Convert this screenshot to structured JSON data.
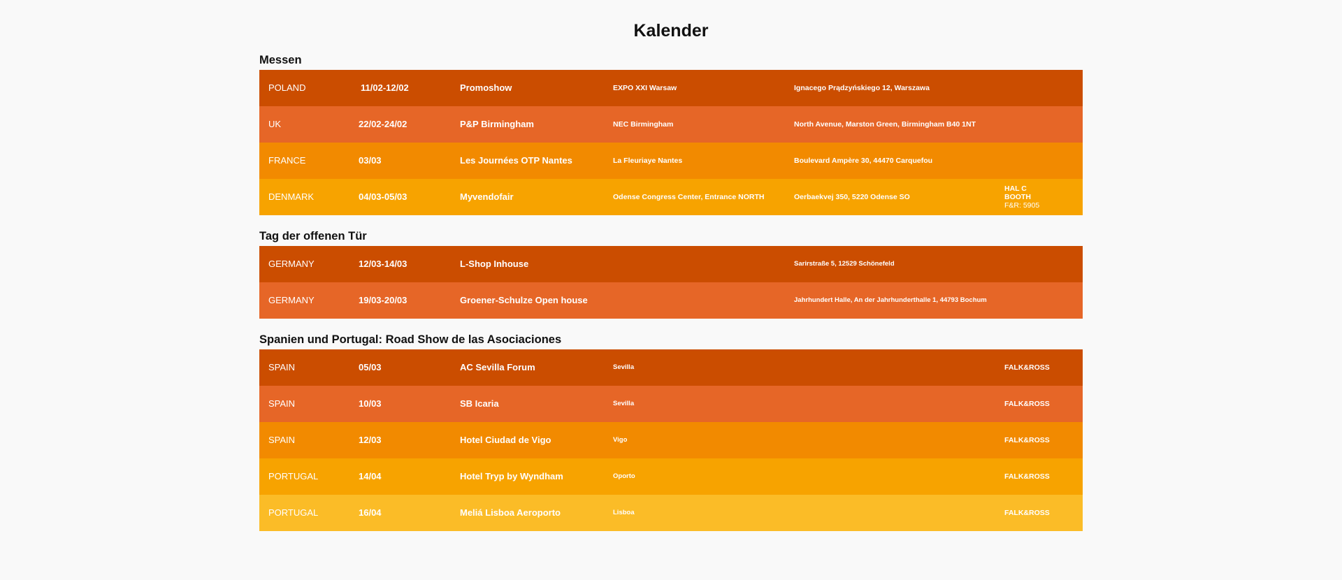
{
  "page": {
    "title": "Kalender"
  },
  "colors": {
    "background": "#f9f9f9",
    "shade_1": "#cb4d00",
    "shade_2": "#e66627",
    "shade_3": "#f28a00",
    "shade_4": "#f7a300",
    "shade_5": "#fbbc27"
  },
  "sections": [
    {
      "title": "Messen",
      "rows": [
        {
          "country": "POLAND",
          "date": "11/02-12/02",
          "event": "Promoshow",
          "venue": "EXPO XXI Warsaw",
          "address": "Ignacego Prądzyńskiego 12, Warszawa",
          "extra": ""
        },
        {
          "country": "UK",
          "date": "22/02-24/02",
          "event": "P&P Birmingham",
          "venue": "NEC Birmingham",
          "address": "North Avenue, Marston Green, Birmingham B40 1NT",
          "extra": ""
        },
        {
          "country": "FRANCE",
          "date": "03/03",
          "event": "Les Journées OTP Nantes",
          "venue": "La Fleuriaye Nantes",
          "address": "Boulevard Ampère 30, 44470 Carquefou",
          "extra": ""
        },
        {
          "country": "DENMARK",
          "date": "04/03-05/03",
          "event": "Myvendofair",
          "venue": "Odense Congress Center, Entrance NORTH",
          "address": "Oerbaekvej 350, 5220 Odense SO",
          "extra_lines": [
            "HAL C",
            "BOOTH",
            "F&R: 5905"
          ]
        }
      ]
    },
    {
      "title": "Tag der offenen Tür",
      "rows": [
        {
          "country": "GERMANY",
          "date": "12/03-14/03",
          "event": "L-Shop Inhouse",
          "venue": "",
          "address": "Sarirstraße 5, 12529 Schönefeld",
          "extra": ""
        },
        {
          "country": "GERMANY",
          "date": "19/03-20/03",
          "event": "Groener-Schulze Open house",
          "venue": "",
          "address": "Jahrhundert Halle, An der Jahrhunderthalle 1, 44793 Bochum",
          "extra": ""
        }
      ]
    },
    {
      "title": "Spanien und Portugal: Road Show de las Asociaciones",
      "rows": [
        {
          "country": "SPAIN",
          "date": "05/03",
          "event": "AC Sevilla Forum",
          "venue": "Sevilla",
          "address": "",
          "extra": "FALK&ROSS"
        },
        {
          "country": "SPAIN",
          "date": "10/03",
          "event": "SB Icaria",
          "venue": "Sevilla",
          "address": "",
          "extra": "FALK&ROSS"
        },
        {
          "country": "SPAIN",
          "date": "12/03",
          "event": "Hotel Ciudad de Vigo",
          "venue": "Vigo",
          "address": "",
          "extra": "FALK&ROSS"
        },
        {
          "country": "PORTUGAL",
          "date": "14/04",
          "event": "Hotel Tryp by Wyndham",
          "venue": "Oporto",
          "address": "",
          "extra": "FALK&ROSS"
        },
        {
          "country": "PORTUGAL",
          "date": "16/04",
          "event": "Meliá Lisboa Aeroporto",
          "venue": "Lisboa",
          "address": "",
          "extra": "FALK&ROSS"
        }
      ]
    }
  ]
}
